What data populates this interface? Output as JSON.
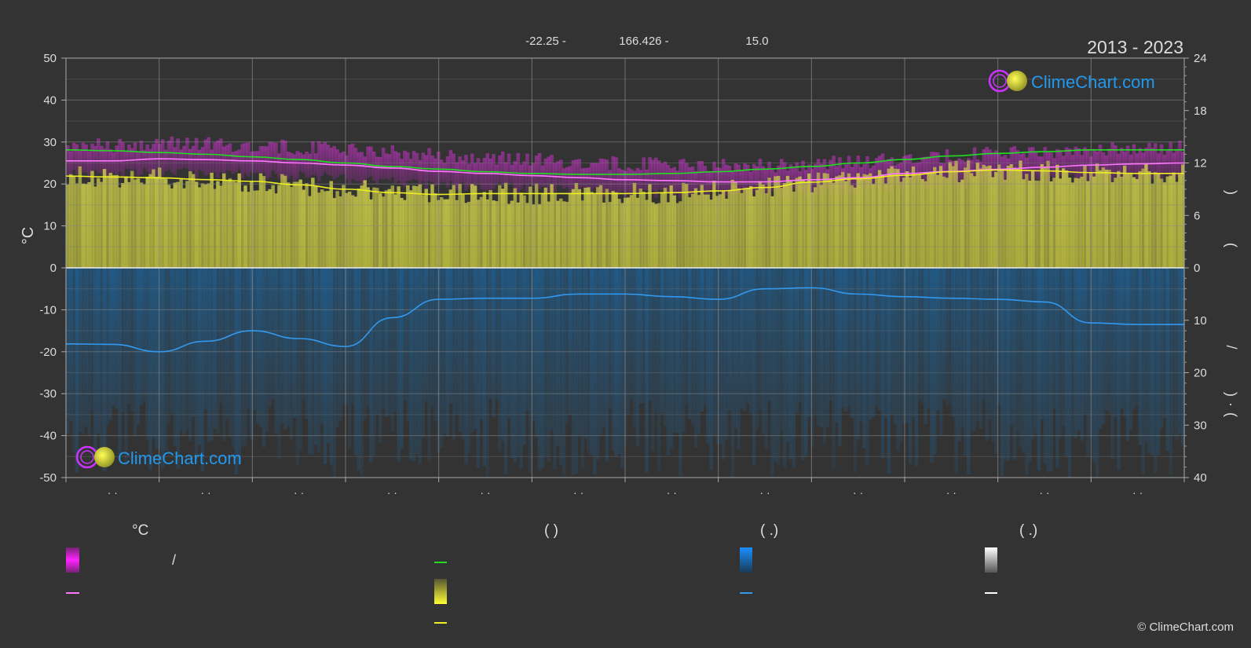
{
  "header": {
    "lat": "-22.25 -",
    "lon": "166.426 -",
    "elev": "15.0",
    "years": "2013 - 2023"
  },
  "logo_text": "ClimeChart.com",
  "copyright": "© ClimeChart.com",
  "month_ticks": [
    "· ·",
    "· ·",
    "· ·",
    "· ·",
    "· ·",
    "· ·",
    "· ·",
    "· ·",
    "· ·",
    "· ·",
    "· ·",
    "· ·"
  ],
  "chart_data": {
    "type": "area",
    "left_axis": {
      "label": "°C",
      "range": [
        -50,
        50
      ],
      "ticks": [
        50,
        40,
        30,
        20,
        10,
        0,
        -10,
        -20,
        -30,
        -40,
        -50
      ]
    },
    "right_axis_top": {
      "range": [
        0,
        24
      ],
      "ticks": [
        24,
        18,
        12,
        6,
        0
      ]
    },
    "right_axis_bottom": {
      "range": [
        0,
        40
      ],
      "ticks": [
        10,
        20,
        30,
        40
      ]
    },
    "right_axis_glyphs": [
      ")",
      "(",
      "/",
      ")",
      "·",
      "("
    ],
    "x": [
      0,
      0.5,
      1,
      1.5,
      2,
      2.5,
      3,
      3.5,
      4,
      4.5,
      5,
      5.5,
      6,
      6.5,
      7,
      7.5,
      8,
      8.5,
      9,
      9.5,
      10,
      10.5,
      11,
      11.5,
      12
    ],
    "series": [
      {
        "color": "#22dd22",
        "axis": "hours",
        "values": [
          13.5,
          13.4,
          13.2,
          13.0,
          12.7,
          12.4,
          12.0,
          11.6,
          11.3,
          11.0,
          10.8,
          10.7,
          10.7,
          10.8,
          11.0,
          11.3,
          11.6,
          12.0,
          12.4,
          12.8,
          13.1,
          13.3,
          13.5,
          13.5,
          13.5
        ]
      },
      {
        "color": "#ff77ff",
        "axis": "temp",
        "values": [
          25.5,
          25.5,
          26.0,
          25.8,
          25.5,
          25.0,
          24.5,
          23.8,
          23.0,
          22.5,
          22.0,
          21.5,
          21.0,
          20.8,
          20.5,
          20.5,
          21.0,
          21.5,
          22.5,
          23.0,
          23.5,
          24.0,
          24.5,
          24.8,
          25.0
        ]
      },
      {
        "color": "#eeee22",
        "axis": "hours",
        "values": [
          10.5,
          10.4,
          10.3,
          10.1,
          9.9,
          9.5,
          9.0,
          8.6,
          8.4,
          8.5,
          8.5,
          8.5,
          8.5,
          8.6,
          8.8,
          9.2,
          9.8,
          10.2,
          10.6,
          11.0,
          11.2,
          11.1,
          10.9,
          10.8,
          10.8
        ]
      },
      {
        "color": "#3399ee",
        "axis": "precip",
        "values": [
          14.5,
          14.6,
          16.0,
          14.0,
          12.0,
          13.5,
          15.0,
          9.5,
          6.0,
          5.8,
          5.8,
          5.0,
          5.0,
          5.5,
          6.0,
          4.0,
          3.8,
          5.0,
          5.5,
          5.8,
          6.0,
          6.5,
          10.5,
          10.8,
          10.8
        ]
      }
    ]
  },
  "legend": {
    "col1_header": "°C",
    "col2_header": "(            )",
    "col3_header": "(    .)",
    "col4_header": "(    .)",
    "slash": "/",
    "colors": {
      "temp_range": "#dd22dd",
      "temp_mean": "#ff77ff",
      "daylight": "#22dd22",
      "sunshine_band": "#dddd22",
      "sunshine_line": "#eeee22",
      "precip_band": "#1a7fd8",
      "precip_line": "#3399ee",
      "snow_band": "#dddddd",
      "snow_line": "#ffffff"
    }
  }
}
